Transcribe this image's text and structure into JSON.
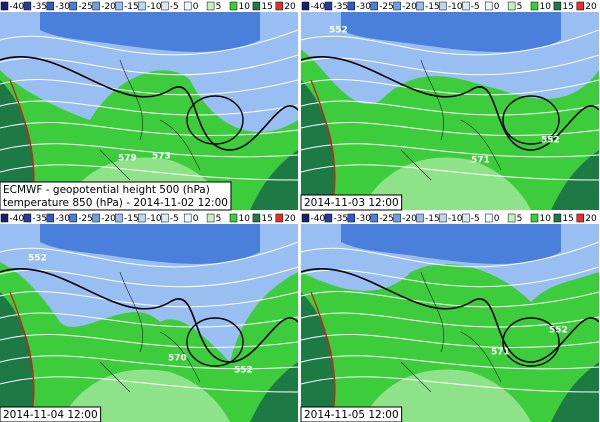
{
  "legend": [
    {
      "label": "-40",
      "color": "#1c1c70"
    },
    {
      "label": "-35",
      "color": "#243ea0"
    },
    {
      "label": "-30",
      "color": "#2f5cc4"
    },
    {
      "label": "-25",
      "color": "#4a80dc"
    },
    {
      "label": "-20",
      "color": "#6c9eea"
    },
    {
      "label": "-15",
      "color": "#98bef2"
    },
    {
      "label": "-10",
      "color": "#bcd6f8"
    },
    {
      "label": "-5",
      "color": "#dce9fb"
    },
    {
      "label": "0",
      "color": "#eef6ff"
    },
    {
      "label": "5",
      "color": "#c4f0bc"
    },
    {
      "label": "10",
      "color": "#3ccc3c"
    },
    {
      "label": "15",
      "color": "#1e7a44"
    },
    {
      "label": "20",
      "color": "#e03030"
    }
  ],
  "panels": [
    {
      "caption": [
        "ECMWF - geopotential height  500 (hPa)",
        "temperature 850 (hPa) - 2014-11-02 12:00"
      ],
      "contour_labels": [
        579,
        573
      ]
    },
    {
      "caption": [
        "2014-11-03 12:00"
      ],
      "contour_labels": [
        552,
        571,
        552
      ]
    },
    {
      "caption": [
        "2014-11-04 12:00"
      ],
      "contour_labels": [
        552,
        570,
        552
      ]
    },
    {
      "caption": [
        "2014-11-05 12:00"
      ],
      "contour_labels": [
        571,
        552
      ]
    }
  ]
}
